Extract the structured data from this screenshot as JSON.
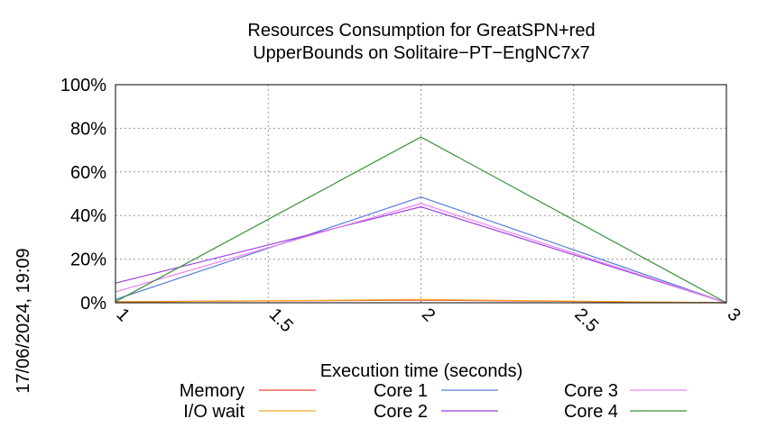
{
  "chart_data": {
    "type": "line",
    "title": [
      "Resources Consumption for GreatSPN+red",
      "UpperBounds on Solitaire−PT−EngNC7x7"
    ],
    "xlabel": "Execution time (seconds)",
    "ylabel": "",
    "xlim": [
      1,
      3
    ],
    "ylim": [
      0,
      100
    ],
    "x_ticks": [
      "1",
      "1.5",
      "2",
      "2.5",
      "3"
    ],
    "y_ticks": [
      "0%",
      "20%",
      "40%",
      "60%",
      "80%",
      "100%"
    ],
    "grid": true,
    "timestamp": "17/06/2024, 19:09",
    "x": [
      1,
      2,
      3
    ],
    "series": [
      {
        "name": "Memory",
        "color": "#e8473a",
        "values": [
          0.5,
          1.2,
          0
        ]
      },
      {
        "name": "I/O wait",
        "color": "#f5a623",
        "values": [
          0.3,
          1.5,
          0
        ]
      },
      {
        "name": "Core 1",
        "color": "#5a7fd8",
        "values": [
          1.5,
          48.5,
          0
        ]
      },
      {
        "name": "Core 2",
        "color": "#9a3fe0",
        "values": [
          9,
          44,
          0
        ]
      },
      {
        "name": "Core 3",
        "color": "#ea80f2",
        "values": [
          5,
          45.5,
          0
        ]
      },
      {
        "name": "Core 4",
        "color": "#3a8f3a",
        "values": [
          0.5,
          76,
          0
        ]
      }
    ],
    "legend_placement": "bottom"
  }
}
